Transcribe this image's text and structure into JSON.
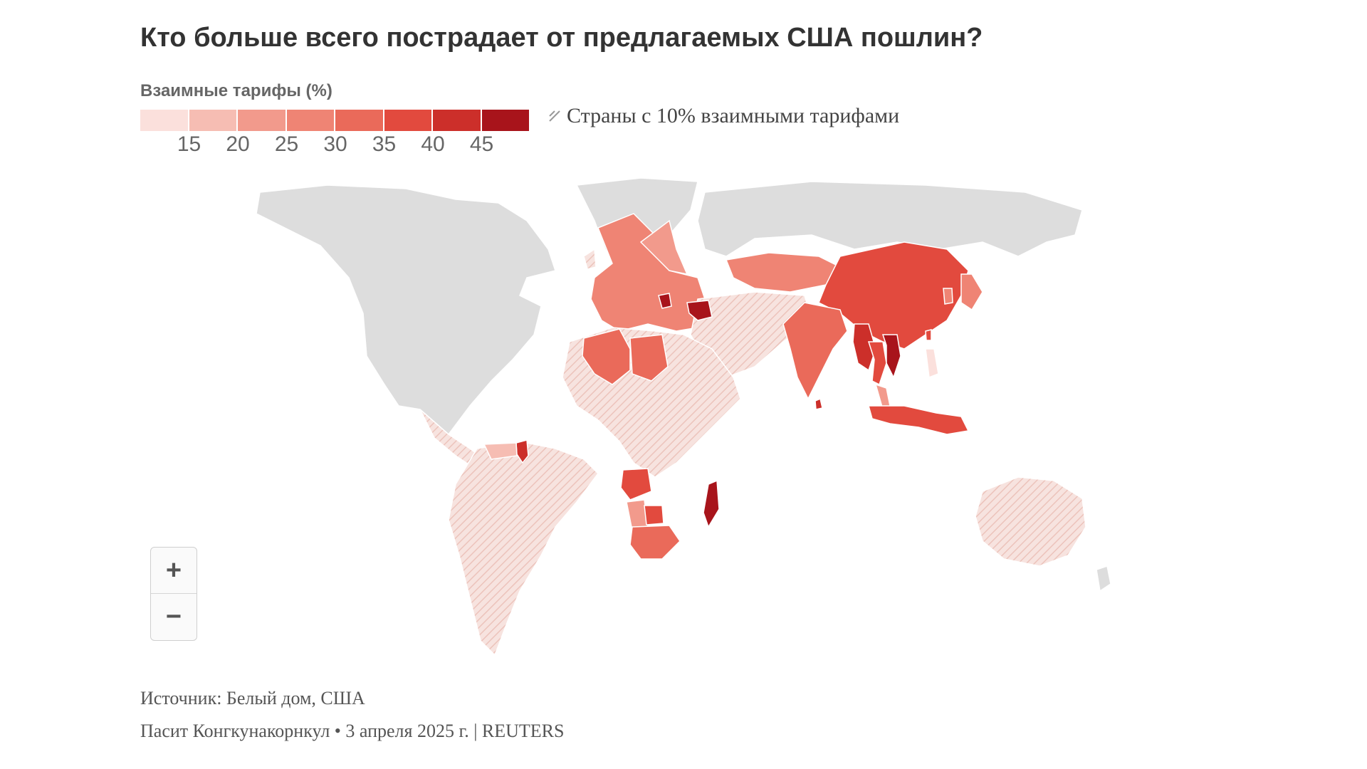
{
  "title": "Кто больше всего пострадает от предлагаемых США пошлин?",
  "legend": {
    "title": "Взаимные тарифы (%)",
    "ticks": [
      "15",
      "20",
      "25",
      "30",
      "35",
      "40",
      "45"
    ],
    "colors": [
      "#fbe0dc",
      "#f6bdb3",
      "#f29a8c",
      "#ef8474",
      "#ea6a5a",
      "#e24a3e",
      "#cc2f2a",
      "#a8141b"
    ],
    "hatch_label": "Страны с 10% взаимными тарифами"
  },
  "map": {
    "colors": {
      "no_data": "#dddddd",
      "hatch_fill": "#f7e3df",
      "hatch_line": "#ecc3bb",
      "ocean": "#ffffff"
    },
    "regions": [
      {
        "name": "North America",
        "value": null
      },
      {
        "name": "Central America",
        "value": 10
      },
      {
        "name": "Guyana",
        "value": 38
      },
      {
        "name": "South America",
        "value": 10
      },
      {
        "name": "Europe",
        "value": 20
      },
      {
        "name": "Serbia",
        "value": 37
      },
      {
        "name": "Algeria",
        "value": 30
      },
      {
        "name": "Libya",
        "value": 31
      },
      {
        "name": "Syria",
        "value": 41
      },
      {
        "name": "Iraq",
        "value": 39
      },
      {
        "name": "North Africa",
        "value": 10
      },
      {
        "name": "Angola",
        "value": 32
      },
      {
        "name": "Namibia",
        "value": 21
      },
      {
        "name": "Botswana",
        "value": 37
      },
      {
        "name": "South Africa",
        "value": 30
      },
      {
        "name": "Madagascar",
        "value": 47
      },
      {
        "name": "Kazakhstan",
        "value": 27
      },
      {
        "name": "China",
        "value": 34
      },
      {
        "name": "India",
        "value": 26
      },
      {
        "name": "Sri Lanka",
        "value": 44
      },
      {
        "name": "Myanmar",
        "value": 44
      },
      {
        "name": "Thailand",
        "value": 36
      },
      {
        "name": "Laos",
        "value": 48
      },
      {
        "name": "Vietnam",
        "value": 46
      },
      {
        "name": "Cambodia",
        "value": 49
      },
      {
        "name": "Indonesia",
        "value": 32
      },
      {
        "name": "Malaysia",
        "value": 24
      },
      {
        "name": "Philippines",
        "value": 17
      },
      {
        "name": "Japan",
        "value": 24
      },
      {
        "name": "South Korea",
        "value": 25
      },
      {
        "name": "Taiwan",
        "value": 32
      },
      {
        "name": "Australia",
        "value": 10
      },
      {
        "name": "Russia",
        "value": null
      },
      {
        "name": "Greenland",
        "value": null
      }
    ]
  },
  "zoom": {
    "in": "+",
    "out": "−"
  },
  "source": "Источник: Белый дом, США",
  "credit": "Пасит Конгкунакорнкул • 3 апреля 2025 г. | REUTERS"
}
